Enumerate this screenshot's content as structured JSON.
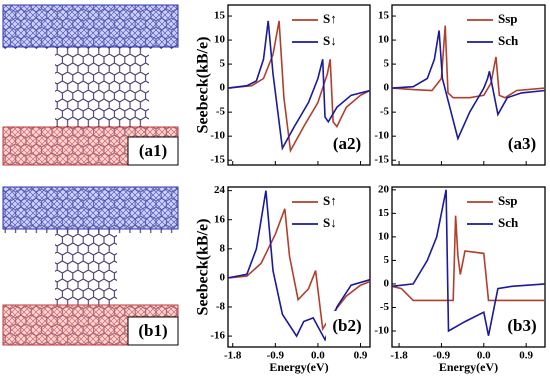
{
  "structures": [
    {
      "label": "(a1)"
    },
    {
      "label": "(b1)"
    }
  ],
  "chart_data": [
    {
      "type": "line",
      "annotation": "(a2)",
      "ylabel": "Seebeck(kB/e)",
      "xlim": [
        -1.9,
        1.1
      ],
      "xticks": [
        -1.8,
        -0.9,
        {
          "value": 0,
          "label": "0.0"
        },
        0.9
      ],
      "xtick_labels": false,
      "ylim": [
        -16,
        17.3
      ],
      "yticks": [
        -15,
        -10,
        -5,
        0,
        5,
        10,
        15
      ],
      "series": [
        {
          "name": "S↑",
          "color": "#b0402c",
          "x": [
            -1.9,
            -1.4,
            -1.15,
            -0.95,
            -0.82,
            -0.72,
            -0.58,
            -0.3,
            0.0,
            0.2,
            0.26,
            0.32,
            0.4,
            0.6,
            0.9,
            1.1
          ],
          "values": [
            0,
            0.5,
            2,
            7,
            14,
            -2,
            -13,
            -8,
            -3,
            3,
            6,
            -7,
            -8,
            -4,
            -1.5,
            -0.5
          ]
        },
        {
          "name": "S↓",
          "color": "#1a1a9c",
          "x": [
            -1.9,
            -1.5,
            -1.3,
            -1.15,
            -1.05,
            -0.95,
            -0.75,
            -0.5,
            -0.2,
            0.0,
            0.1,
            0.15,
            0.22,
            0.4,
            0.7,
            1.1
          ],
          "values": [
            0,
            0.5,
            1.5,
            6,
            14,
            3,
            -12.5,
            -8,
            -3,
            2,
            6,
            -6,
            -7,
            -4,
            -1.5,
            -0.5
          ]
        }
      ]
    },
    {
      "type": "line",
      "annotation": "(a3)",
      "xlim": [
        -1.95,
        1.3
      ],
      "xticks": [
        -1.8,
        -0.9,
        {
          "value": 0,
          "label": "0.0"
        },
        0.9
      ],
      "xtick_labels": false,
      "ylim": [
        -16,
        17.3
      ],
      "yticks": [
        -15,
        -10,
        -5,
        0,
        5,
        10,
        15
      ],
      "series": [
        {
          "name": "Ssp",
          "color": "#b0402c",
          "x": [
            -1.95,
            -1.5,
            -1.1,
            -0.9,
            -0.82,
            -0.76,
            -0.65,
            -0.3,
            0.0,
            0.15,
            0.26,
            0.33,
            0.45,
            0.7,
            1.3
          ],
          "values": [
            0,
            -0.3,
            -0.5,
            2,
            13,
            -1,
            -2,
            -2,
            -1.5,
            1,
            6.5,
            -1.5,
            -2,
            -0.5,
            0
          ]
        },
        {
          "name": "Sch",
          "color": "#1a1a9c",
          "x": [
            -1.95,
            -1.5,
            -1.2,
            -1.05,
            -0.95,
            -0.88,
            -0.55,
            -0.3,
            0.0,
            0.08,
            0.12,
            0.3,
            0.5,
            0.8,
            1.3
          ],
          "values": [
            0,
            0.3,
            2,
            6,
            12,
            2,
            -10.5,
            -5,
            0,
            2,
            3.5,
            -5.5,
            -2,
            -1,
            -0.5
          ]
        }
      ]
    },
    {
      "type": "line",
      "annotation": "(b2)",
      "ylabel": "Seebeck(kB/e)",
      "xlabel": "Energy(eV)",
      "xlim": [
        -1.9,
        1.1
      ],
      "xticks": [
        -1.8,
        -0.9,
        {
          "value": 0,
          "label": "0.0"
        },
        0.9
      ],
      "xtick_labels": true,
      "ylim": [
        -19,
        25
      ],
      "yticks": [
        -16,
        -8,
        0,
        8,
        16,
        24
      ],
      "series": [
        {
          "name": "S↑",
          "color": "#b0402c",
          "x": [
            -1.9,
            -1.5,
            -1.2,
            -0.9,
            -0.7,
            -0.6,
            -0.42,
            -0.2,
            -0.05,
            0.1,
            0.3,
            0.6,
            0.9,
            1.1
          ],
          "values": [
            0,
            0.5,
            4,
            12,
            19,
            6,
            -6,
            -3,
            2,
            -14,
            -10,
            -5,
            -2,
            -1
          ]
        },
        {
          "name": "S↓",
          "color": "#1a1a9c",
          "x": [
            -1.9,
            -1.5,
            -1.3,
            -1.1,
            -0.95,
            -0.75,
            -0.45,
            -0.3,
            -0.1,
            0.15,
            0.4,
            0.7,
            1.1
          ],
          "values": [
            0,
            1,
            8,
            24,
            2,
            -10,
            -16,
            -12,
            -11,
            -17,
            -8,
            -2,
            -0.5
          ]
        }
      ]
    },
    {
      "type": "line",
      "annotation": "(b3)",
      "xlabel": "Energy(eV)",
      "xlim": [
        -1.95,
        1.3
      ],
      "xticks": [
        -1.8,
        -0.9,
        {
          "value": 0,
          "label": "0.0"
        },
        0.9
      ],
      "xtick_labels": true,
      "ylim": [
        -13.4,
        20.6
      ],
      "yticks": [
        -10,
        -5,
        0,
        5,
        10,
        15,
        20
      ],
      "series": [
        {
          "name": "Ssp",
          "color": "#b0402c",
          "x": [
            -1.95,
            -1.75,
            -1.5,
            -1.0,
            -0.65,
            -0.6,
            -0.55,
            -0.5,
            -0.4,
            0.0,
            0.1,
            0.4,
            1.3
          ],
          "values": [
            -0.5,
            -1,
            -3.5,
            -3.5,
            -3.5,
            14.5,
            6,
            2,
            7,
            6.5,
            -3.5,
            -3.5,
            -3.5
          ]
        },
        {
          "name": "Sch",
          "color": "#1a1a9c",
          "x": [
            -1.95,
            -1.5,
            -1.2,
            -1.0,
            -0.8,
            -0.75,
            -0.4,
            0.0,
            0.1,
            0.3,
            0.6,
            1.3
          ],
          "values": [
            -0.5,
            0,
            5,
            10,
            20,
            -10,
            -8,
            -6,
            -11,
            -1,
            -0.5,
            0
          ]
        }
      ]
    }
  ]
}
